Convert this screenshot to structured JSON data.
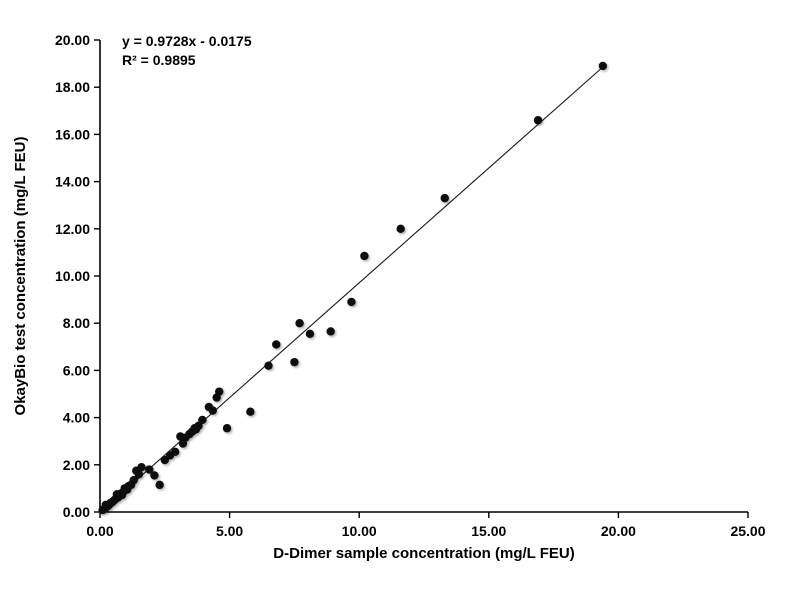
{
  "chart_data": {
    "type": "scatter",
    "title": "",
    "xlabel": "D-Dimer sample concentration (mg/L FEU)",
    "ylabel": "OkayBio test concentration (mg/L FEU)",
    "xlim": [
      0,
      25
    ],
    "ylim": [
      0,
      20
    ],
    "grid": false,
    "legend": "none",
    "x_tick_values": [
      0,
      5,
      10,
      15,
      20,
      25
    ],
    "x_tick_labels": [
      "0.00",
      "5.00",
      "10.00",
      "15.00",
      "20.00",
      "25.00"
    ],
    "y_tick_values": [
      0,
      2,
      4,
      6,
      8,
      10,
      12,
      14,
      16,
      18,
      20
    ],
    "y_tick_labels": [
      "0.00",
      "2.00",
      "4.00",
      "6.00",
      "8.00",
      "10.00",
      "12.00",
      "14.00",
      "16.00",
      "18.00",
      "20.00"
    ],
    "equation": "y = 0.9728x - 0.0175",
    "r_squared": "R² = 0.9895",
    "marker_color": "#0c0c0c",
    "line_color": "#1a1a1a",
    "trendline": {
      "slope": 0.9728,
      "intercept": -0.0175,
      "x_start": 0.05,
      "x_end": 19.45
    },
    "points": [
      [
        0.1,
        0.08
      ],
      [
        0.15,
        0.12
      ],
      [
        0.2,
        0.15
      ],
      [
        0.22,
        0.3
      ],
      [
        0.25,
        0.22
      ],
      [
        0.3,
        0.25
      ],
      [
        0.35,
        0.3
      ],
      [
        0.4,
        0.38
      ],
      [
        0.45,
        0.4
      ],
      [
        0.5,
        0.45
      ],
      [
        0.55,
        0.5
      ],
      [
        0.6,
        0.55
      ],
      [
        0.65,
        0.75
      ],
      [
        0.7,
        0.62
      ],
      [
        0.75,
        0.7
      ],
      [
        0.8,
        0.78
      ],
      [
        0.85,
        0.72
      ],
      [
        0.9,
        0.85
      ],
      [
        0.95,
        1.0
      ],
      [
        1.05,
        0.95
      ],
      [
        1.1,
        1.1
      ],
      [
        1.2,
        1.15
      ],
      [
        1.3,
        1.35
      ],
      [
        1.4,
        1.75
      ],
      [
        1.5,
        1.6
      ],
      [
        1.6,
        1.9
      ],
      [
        1.9,
        1.8
      ],
      [
        2.1,
        1.55
      ],
      [
        2.3,
        1.15
      ],
      [
        2.5,
        2.2
      ],
      [
        2.7,
        2.4
      ],
      [
        2.9,
        2.55
      ],
      [
        3.1,
        3.2
      ],
      [
        3.2,
        2.9
      ],
      [
        3.3,
        3.15
      ],
      [
        3.45,
        3.3
      ],
      [
        3.55,
        3.4
      ],
      [
        3.65,
        3.55
      ],
      [
        3.7,
        3.5
      ],
      [
        3.8,
        3.65
      ],
      [
        3.95,
        3.9
      ],
      [
        4.2,
        4.45
      ],
      [
        4.35,
        4.3
      ],
      [
        4.5,
        4.85
      ],
      [
        4.6,
        5.1
      ],
      [
        4.9,
        3.55
      ],
      [
        5.8,
        4.25
      ],
      [
        6.5,
        6.2
      ],
      [
        6.8,
        7.1
      ],
      [
        7.5,
        6.35
      ],
      [
        7.7,
        8.0
      ],
      [
        8.1,
        7.55
      ],
      [
        8.9,
        7.65
      ],
      [
        9.7,
        8.9
      ],
      [
        10.2,
        10.85
      ],
      [
        11.6,
        12.0
      ],
      [
        13.3,
        13.3
      ],
      [
        16.9,
        16.6
      ],
      [
        19.4,
        18.9
      ]
    ]
  }
}
